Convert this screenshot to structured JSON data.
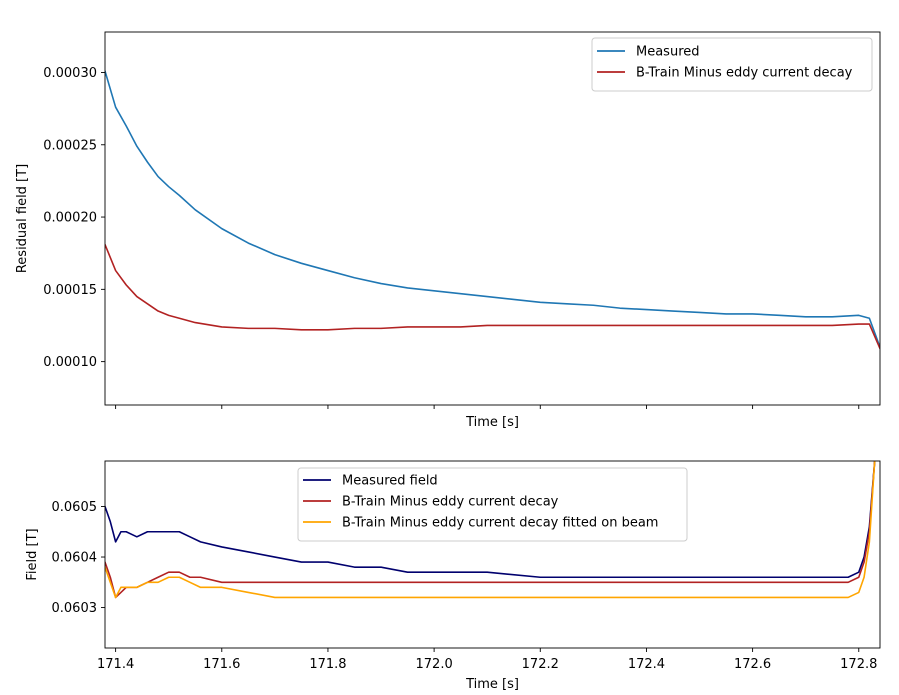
{
  "chart_data": [
    {
      "type": "line",
      "title": "",
      "xlabel": "Time [s]",
      "ylabel": "Residual field [T]",
      "xlim": [
        171.38,
        172.84
      ],
      "ylim": [
        7e-05,
        0.000328
      ],
      "grid": false,
      "legend": "top-right",
      "y_ticks": [
        0.0001,
        0.00015,
        0.0002,
        0.00025,
        0.0003
      ],
      "y_tick_labels": [
        "0.00010",
        "0.00015",
        "0.00020",
        "0.00025",
        "0.00030"
      ],
      "x_ticks": [
        171.4,
        171.6,
        171.8,
        172.0,
        172.2,
        172.4,
        172.6,
        172.8
      ],
      "series": [
        {
          "name": "Measured",
          "color": "#1f77b4",
          "x": [
            171.38,
            171.4,
            171.42,
            171.44,
            171.46,
            171.48,
            171.5,
            171.52,
            171.55,
            171.6,
            171.65,
            171.7,
            171.75,
            171.8,
            171.85,
            171.9,
            171.95,
            172.0,
            172.05,
            172.1,
            172.15,
            172.2,
            172.25,
            172.3,
            172.35,
            172.4,
            172.45,
            172.5,
            172.55,
            172.6,
            172.65,
            172.7,
            172.75,
            172.8,
            172.82,
            172.84
          ],
          "y": [
            0.000301,
            0.000276,
            0.000263,
            0.000249,
            0.000238,
            0.000228,
            0.000221,
            0.000215,
            0.000205,
            0.000192,
            0.000182,
            0.000174,
            0.000168,
            0.000163,
            0.000158,
            0.000154,
            0.000151,
            0.000149,
            0.000147,
            0.000145,
            0.000143,
            0.000141,
            0.00014,
            0.000139,
            0.000137,
            0.000136,
            0.000135,
            0.000134,
            0.000133,
            0.000133,
            0.000132,
            0.000131,
            0.000131,
            0.000132,
            0.00013,
            0.00011
          ]
        },
        {
          "name": "B-Train Minus eddy current decay",
          "color": "#b22222",
          "x": [
            171.38,
            171.4,
            171.42,
            171.44,
            171.46,
            171.48,
            171.5,
            171.52,
            171.55,
            171.6,
            171.65,
            171.7,
            171.75,
            171.8,
            171.85,
            171.9,
            171.95,
            172.0,
            172.05,
            172.1,
            172.15,
            172.2,
            172.25,
            172.3,
            172.35,
            172.4,
            172.45,
            172.5,
            172.55,
            172.6,
            172.65,
            172.7,
            172.75,
            172.8,
            172.82,
            172.84
          ],
          "y": [
            0.000181,
            0.000163,
            0.000153,
            0.000145,
            0.00014,
            0.000135,
            0.000132,
            0.00013,
            0.000127,
            0.000124,
            0.000123,
            0.000123,
            0.000122,
            0.000122,
            0.000123,
            0.000123,
            0.000124,
            0.000124,
            0.000124,
            0.000125,
            0.000125,
            0.000125,
            0.000125,
            0.000125,
            0.000125,
            0.000125,
            0.000125,
            0.000125,
            0.000125,
            0.000125,
            0.000125,
            0.000125,
            0.000125,
            0.000126,
            0.000126,
            0.000109
          ]
        }
      ]
    },
    {
      "type": "line",
      "title": "",
      "xlabel": "Time [s]",
      "ylabel": "Field [T]",
      "xlim": [
        171.38,
        172.84
      ],
      "ylim": [
        0.06022,
        0.06059
      ],
      "grid": false,
      "legend": "top-center",
      "y_ticks": [
        0.0603,
        0.0604,
        0.0605
      ],
      "y_tick_labels": [
        "0.0603",
        "0.0604",
        "0.0605"
      ],
      "x_ticks": [
        171.4,
        171.6,
        171.8,
        172.0,
        172.2,
        172.4,
        172.6,
        172.8
      ],
      "x_tick_labels": [
        "171.4",
        "171.6",
        "171.8",
        "172.0",
        "172.2",
        "172.4",
        "172.6",
        "172.8"
      ],
      "series": [
        {
          "name": "Measured field",
          "color": "#00006e",
          "x": [
            171.38,
            171.39,
            171.4,
            171.41,
            171.42,
            171.44,
            171.46,
            171.48,
            171.5,
            171.52,
            171.54,
            171.56,
            171.6,
            171.65,
            171.7,
            171.75,
            171.8,
            171.85,
            171.9,
            171.95,
            172.0,
            172.1,
            172.2,
            172.3,
            172.4,
            172.5,
            172.6,
            172.7,
            172.76,
            172.78,
            172.8,
            172.81,
            172.82,
            172.83
          ],
          "y": [
            0.0605,
            0.06047,
            0.06043,
            0.06045,
            0.06045,
            0.06044,
            0.06045,
            0.06045,
            0.06045,
            0.06045,
            0.06044,
            0.06043,
            0.06042,
            0.06041,
            0.0604,
            0.06039,
            0.06039,
            0.06038,
            0.06038,
            0.06037,
            0.06037,
            0.06037,
            0.06036,
            0.06036,
            0.06036,
            0.06036,
            0.06036,
            0.06036,
            0.06036,
            0.06036,
            0.06037,
            0.0604,
            0.06046,
            0.06059
          ]
        },
        {
          "name": "B-Train Minus eddy current decay",
          "color": "#b22222",
          "x": [
            171.38,
            171.39,
            171.4,
            171.41,
            171.42,
            171.44,
            171.46,
            171.48,
            171.5,
            171.52,
            171.54,
            171.56,
            171.6,
            171.65,
            171.7,
            171.8,
            171.9,
            172.0,
            172.1,
            172.2,
            172.3,
            172.4,
            172.5,
            172.6,
            172.7,
            172.76,
            172.78,
            172.8,
            172.81,
            172.82,
            172.83
          ],
          "y": [
            0.06039,
            0.06036,
            0.06032,
            0.06033,
            0.06034,
            0.06034,
            0.06035,
            0.06036,
            0.06037,
            0.06037,
            0.06036,
            0.06036,
            0.06035,
            0.06035,
            0.06035,
            0.06035,
            0.06035,
            0.06035,
            0.06035,
            0.06035,
            0.06035,
            0.06035,
            0.06035,
            0.06035,
            0.06035,
            0.06035,
            0.06035,
            0.06036,
            0.06039,
            0.06045,
            0.06059
          ]
        },
        {
          "name": "B-Train Minus eddy current decay fitted on beam",
          "color": "#ffa500",
          "x": [
            171.38,
            171.39,
            171.4,
            171.41,
            171.42,
            171.44,
            171.46,
            171.48,
            171.5,
            171.52,
            171.54,
            171.56,
            171.6,
            171.65,
            171.7,
            171.8,
            171.9,
            172.0,
            172.1,
            172.2,
            172.3,
            172.4,
            172.5,
            172.6,
            172.7,
            172.76,
            172.78,
            172.8,
            172.81,
            172.82,
            172.83
          ],
          "y": [
            0.06038,
            0.06035,
            0.06032,
            0.06034,
            0.06034,
            0.06034,
            0.06035,
            0.06035,
            0.06036,
            0.06036,
            0.06035,
            0.06034,
            0.06034,
            0.06033,
            0.06032,
            0.06032,
            0.06032,
            0.06032,
            0.06032,
            0.06032,
            0.06032,
            0.06032,
            0.06032,
            0.06032,
            0.06032,
            0.06032,
            0.06032,
            0.06033,
            0.06036,
            0.06043,
            0.06059
          ]
        }
      ]
    }
  ]
}
